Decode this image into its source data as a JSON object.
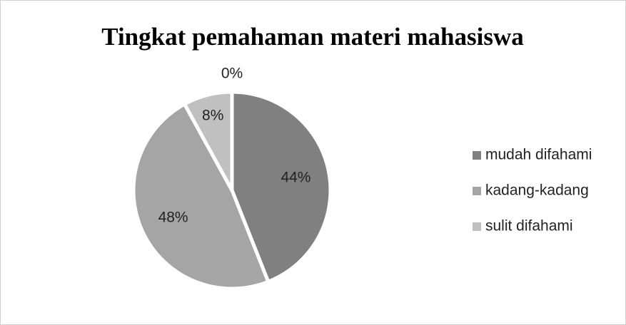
{
  "chart_data": {
    "type": "pie",
    "title": "Tingkat pemahaman materi mahasiswa",
    "categories": [
      "mudah difahami",
      "kadang-kadang",
      "sulit difahami",
      null
    ],
    "values": [
      44,
      48,
      8,
      0
    ],
    "value_labels": [
      "44%",
      "48%",
      "8%",
      "0%"
    ],
    "colors": [
      "#808080",
      "#a5a5a5",
      "#c0c0c0",
      "#d9d9d9"
    ],
    "legend": "right"
  }
}
